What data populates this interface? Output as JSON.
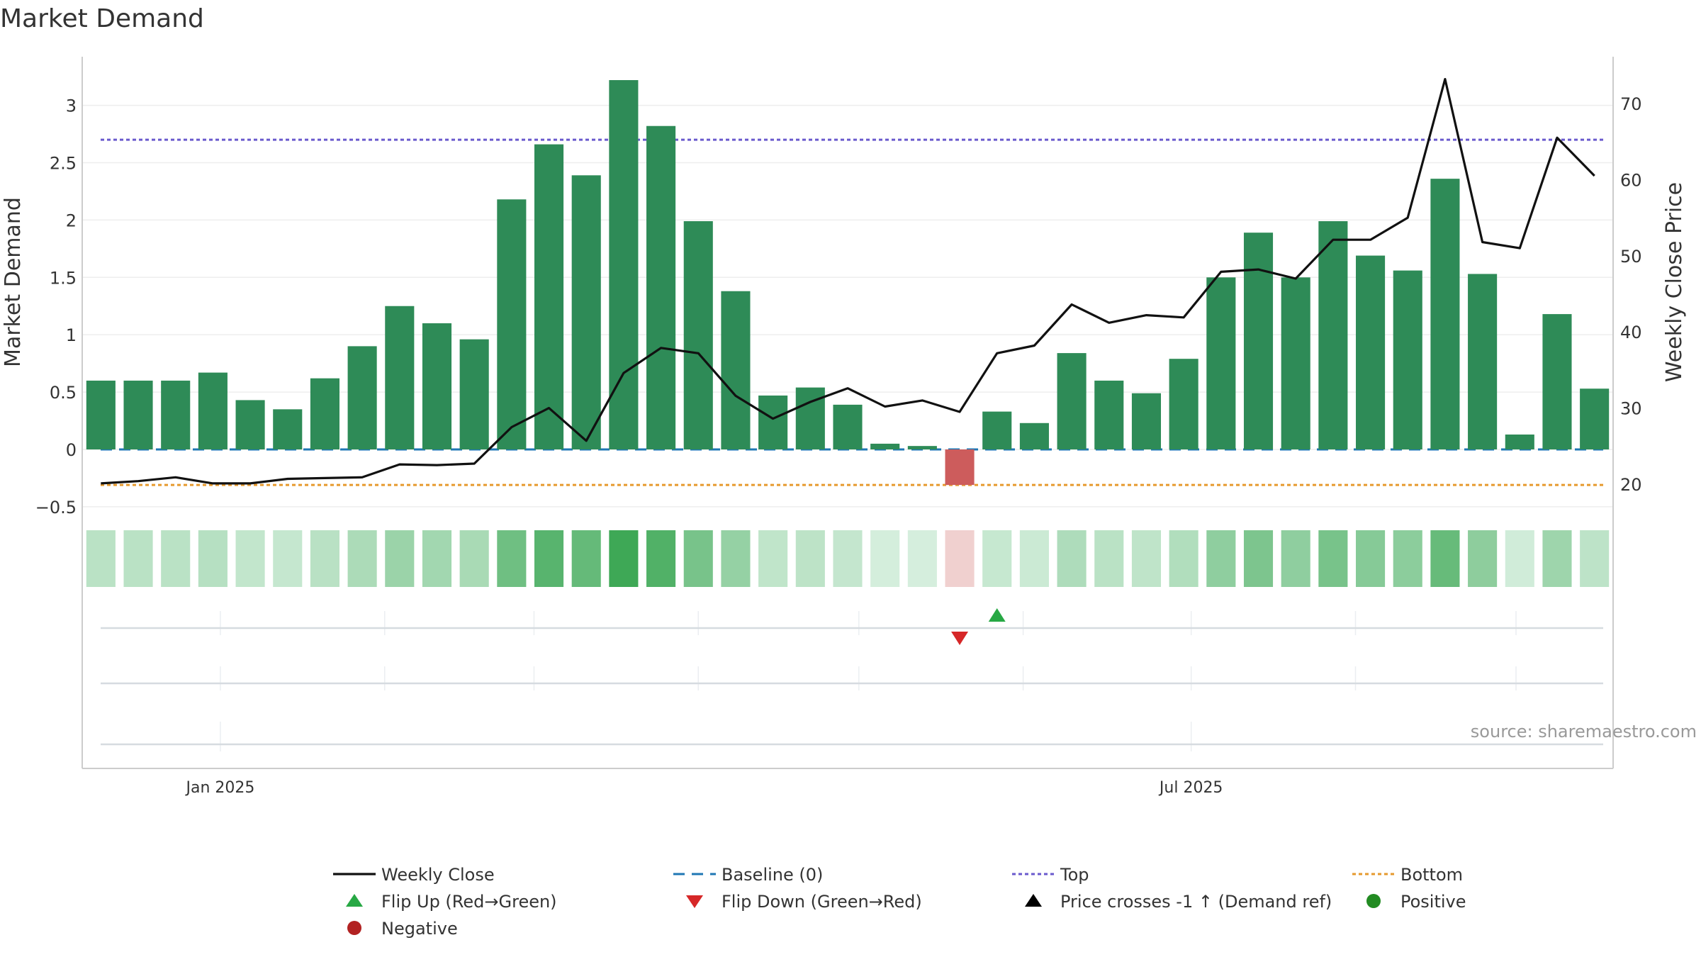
{
  "chart_data": {
    "type": "bar",
    "title": "Market Demand",
    "ylabel": "Market Demand",
    "y2label": "Weekly Close Price",
    "ylim": [
      -0.5,
      3.3
    ],
    "y2lim": [
      18,
      75
    ],
    "yticks": [
      "−0.5",
      "0",
      "0.5",
      "1",
      "1.5",
      "2",
      "2.5",
      "3"
    ],
    "y2ticks": [
      "20",
      "30",
      "40",
      "50",
      "60",
      "70"
    ],
    "xticks": [
      {
        "label": "Jan 2025",
        "index": 3.2
      },
      {
        "label": "Jul 2025",
        "index": 29.2
      }
    ],
    "grid": true,
    "legend_position": "bottom",
    "watermark": "source: sharemaestro.com",
    "reference_lines": {
      "top": 2.7,
      "bottom": -0.31,
      "baseline": 0
    },
    "demand": [
      0.6,
      0.6,
      0.6,
      0.67,
      0.43,
      0.35,
      0.62,
      0.9,
      1.25,
      1.1,
      0.96,
      2.18,
      2.66,
      2.39,
      3.22,
      2.82,
      1.99,
      1.38,
      0.47,
      0.54,
      0.39,
      0.05,
      0.03,
      -0.31,
      0.33,
      0.23,
      0.84,
      0.6,
      0.49,
      0.79,
      1.5,
      1.89,
      1.5,
      1.99,
      1.69,
      1.56,
      2.36,
      1.53,
      0.13,
      1.18,
      0.53
    ],
    "weekly_close": [
      20.1,
      20.4,
      20.9,
      20.1,
      20.1,
      20.7,
      20.8,
      20.9,
      22.6,
      22.5,
      22.7,
      27.5,
      30.0,
      25.7,
      34.6,
      37.9,
      37.2,
      31.6,
      28.6,
      30.8,
      32.6,
      30.2,
      31.0,
      29.5,
      37.2,
      38.2,
      43.6,
      41.2,
      42.2,
      41.9,
      47.9,
      48.2,
      47.0,
      52.1,
      52.1,
      55.0,
      73.2,
      51.8,
      51.0,
      65.5,
      60.5
    ],
    "flip_down": [
      {
        "index": 23,
        "label": "Flip Down (Green→Red)"
      }
    ],
    "flip_up": [
      {
        "index": 24,
        "label": "Flip Up (Red→Green)"
      }
    ],
    "colors": {
      "positive_bar": "#2e8b57",
      "negative_bar": "#cd5c5c",
      "close_line": "#111111",
      "baseline": "#1f77b4",
      "top": "#6a5acd",
      "bottom": "#e69a2e",
      "flip_up": "#27a844",
      "flip_down": "#d62728",
      "positive_dot": "#228b22",
      "negative_dot": "#b22222",
      "heat_negative": "#f0d0cf"
    },
    "series": [
      {
        "name": "Weekly Close",
        "key": "close"
      },
      {
        "name": "Baseline (0)",
        "key": "baseline"
      },
      {
        "name": "Top",
        "key": "top"
      },
      {
        "name": "Bottom",
        "key": "bottom"
      },
      {
        "name": "Flip Up (Red→Green)",
        "key": "flipup"
      },
      {
        "name": "Flip Down (Green→Red)",
        "key": "flipdown"
      },
      {
        "name": "Price crosses -1 ↑ (Demand ref)",
        "key": "crosses"
      },
      {
        "name": "Positive",
        "key": "positive"
      },
      {
        "name": "Negative",
        "key": "negative"
      }
    ]
  }
}
